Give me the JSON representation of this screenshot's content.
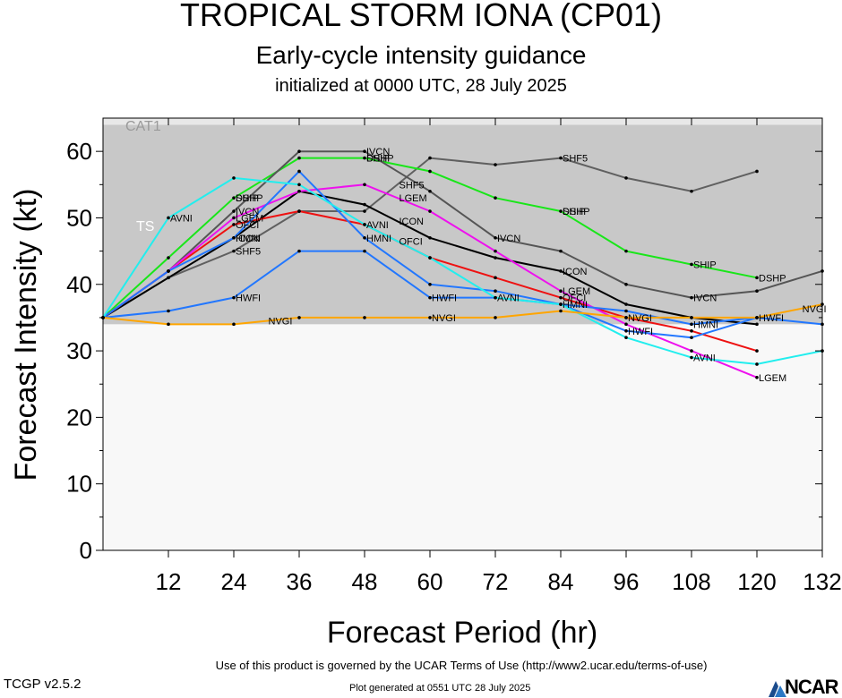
{
  "header": {
    "title": "TROPICAL STORM IONA (CP01)",
    "subtitle": "Early-cycle intensity guidance",
    "init": "initialized at 0000 UTC, 28 July 2025"
  },
  "footer": {
    "terms": "Use of this product is governed by the UCAR Terms of Use (http://www2.ucar.edu/terms-of-use)",
    "version": "TCGP v2.5.2",
    "generated": "Plot generated at 0551 UTC   28 July 2025",
    "logo_text": "NCAR"
  },
  "chart_data": {
    "type": "line",
    "title": "TROPICAL STORM IONA (CP01)",
    "xlabel": "Forecast Period (hr)",
    "ylabel": "Forecast Intensity (kt)",
    "xlim": [
      0,
      132
    ],
    "ylim": [
      0,
      65
    ],
    "xticks": [
      12,
      24,
      36,
      48,
      60,
      72,
      84,
      96,
      108,
      120,
      132
    ],
    "yticks": [
      0,
      10,
      20,
      30,
      40,
      50,
      60
    ],
    "grid": false,
    "bands": [
      {
        "label": "",
        "from": 0,
        "to": 34,
        "color": "#f8f8f8"
      },
      {
        "label": "TS",
        "from": 34,
        "to": 64,
        "color": "#c8c8c8"
      },
      {
        "label": "CAT1",
        "from": 64,
        "to": 65,
        "color": "#e8e8e8"
      }
    ],
    "series": [
      {
        "name": "SHF5",
        "color": "#606060",
        "x": [
          0,
          12,
          24,
          36,
          48,
          60,
          72,
          84,
          96,
          108,
          120
        ],
        "y": [
          35,
          41,
          45,
          51,
          51,
          59,
          58,
          59,
          56,
          54,
          57
        ],
        "labels": [
          [
            24,
            "SHF5"
          ],
          [
            54,
            "SHF5"
          ],
          [
            84,
            "SHF5"
          ]
        ]
      },
      {
        "name": "DSHP",
        "color": "#19e619",
        "x": [
          0,
          12,
          24,
          36,
          48,
          60,
          72,
          84,
          96,
          108,
          120
        ],
        "y": [
          35,
          44,
          53,
          59,
          59,
          57,
          53,
          51,
          45,
          43,
          41
        ],
        "labels": [
          [
            24,
            "DSHP"
          ],
          [
            48,
            "DSHP"
          ],
          [
            84,
            "DSHP"
          ],
          [
            120,
            "DSHP"
          ]
        ]
      },
      {
        "name": "SHIP",
        "color": "#19e619",
        "x": [],
        "y": [],
        "labels": [
          [
            24,
            "SHIP"
          ],
          [
            48,
            "SHIP"
          ],
          [
            84,
            "SHIP"
          ],
          [
            108,
            "SHIP"
          ]
        ]
      },
      {
        "name": "IVCN",
        "color": "#555555",
        "x": [
          0,
          12,
          24,
          36,
          48,
          60,
          72,
          84,
          96,
          108,
          120,
          132
        ],
        "y": [
          35,
          42,
          51,
          60,
          60,
          54,
          47,
          45,
          40,
          38,
          39,
          42
        ],
        "labels": [
          [
            24,
            "IVCN"
          ],
          [
            48,
            "IVCN"
          ],
          [
            72,
            "IVCN"
          ],
          [
            108,
            "IVCN"
          ]
        ]
      },
      {
        "name": "ICON",
        "color": "#000000",
        "x": [
          0,
          12,
          24,
          36,
          48,
          60,
          72,
          84,
          96,
          108,
          120
        ],
        "y": [
          35,
          41,
          47,
          54,
          52,
          47,
          44,
          42,
          37,
          35,
          34
        ],
        "labels": [
          [
            24,
            "ICON"
          ],
          [
            54,
            "ICON"
          ],
          [
            84,
            "ICON"
          ]
        ]
      },
      {
        "name": "OFCI",
        "color": "#ee1111",
        "x": [
          0,
          12,
          24,
          36,
          48,
          60,
          72,
          84,
          96,
          108,
          120
        ],
        "y": [
          35,
          42,
          49,
          51,
          49,
          44,
          41,
          38,
          35,
          33,
          30
        ],
        "labels": [
          [
            24,
            "OFCI"
          ],
          [
            54,
            "OFCI"
          ],
          [
            84,
            "OFCI"
          ]
        ]
      },
      {
        "name": "LGEM",
        "color": "#ee11ee",
        "x": [
          0,
          12,
          24,
          36,
          48,
          60,
          72,
          84,
          96,
          108,
          120
        ],
        "y": [
          35,
          42,
          50,
          54,
          55,
          51,
          45,
          39,
          34,
          30,
          26
        ],
        "labels": [
          [
            24,
            "LGEM"
          ],
          [
            54,
            "LGEM"
          ],
          [
            84,
            "LGEM"
          ],
          [
            120,
            "LGEM"
          ]
        ]
      },
      {
        "name": "HMNI",
        "color": "#2277ff",
        "x": [
          0,
          12,
          24,
          36,
          48,
          60,
          72,
          84,
          96,
          108,
          120
        ],
        "y": [
          35,
          42,
          47,
          57,
          47,
          40,
          39,
          37,
          36,
          34,
          35
        ],
        "labels": [
          [
            24,
            "HMNI"
          ],
          [
            48,
            "HMNI"
          ],
          [
            84,
            "HMNI"
          ],
          [
            108,
            "HMNI"
          ]
        ]
      },
      {
        "name": "HWFI",
        "color": "#2277ff",
        "x": [
          0,
          12,
          24,
          36,
          48,
          60,
          72,
          84,
          96,
          108,
          120,
          132
        ],
        "y": [
          35,
          36,
          38,
          45,
          45,
          38,
          38,
          37,
          33,
          32,
          35,
          34
        ],
        "labels": [
          [
            24,
            "HWFI"
          ],
          [
            60,
            "HWFI"
          ],
          [
            96,
            "HWFI"
          ],
          [
            120,
            "HWFI"
          ]
        ]
      },
      {
        "name": "AVNI",
        "color": "#22eeee",
        "x": [
          0,
          12,
          24,
          36,
          48,
          60,
          72,
          84,
          96,
          108,
          120,
          132
        ],
        "y": [
          35,
          50,
          56,
          55,
          49,
          44,
          38,
          37,
          32,
          29,
          28,
          30
        ],
        "labels": [
          [
            12,
            "AVNI"
          ],
          [
            48,
            "AVNI"
          ],
          [
            72,
            "AVNI"
          ],
          [
            108,
            "AVNI"
          ]
        ]
      },
      {
        "name": "NVGI",
        "color": "#ffa500",
        "x": [
          0,
          12,
          24,
          36,
          48,
          60,
          72,
          84,
          96,
          108,
          120,
          132
        ],
        "y": [
          35,
          34,
          34,
          35,
          35,
          35,
          35,
          36,
          35,
          35,
          35,
          37
        ],
        "labels": [
          [
            30,
            "NVGI"
          ],
          [
            60,
            "NVGI"
          ],
          [
            96,
            "NVGI"
          ],
          [
            128,
            "NVGI"
          ]
        ]
      }
    ]
  }
}
